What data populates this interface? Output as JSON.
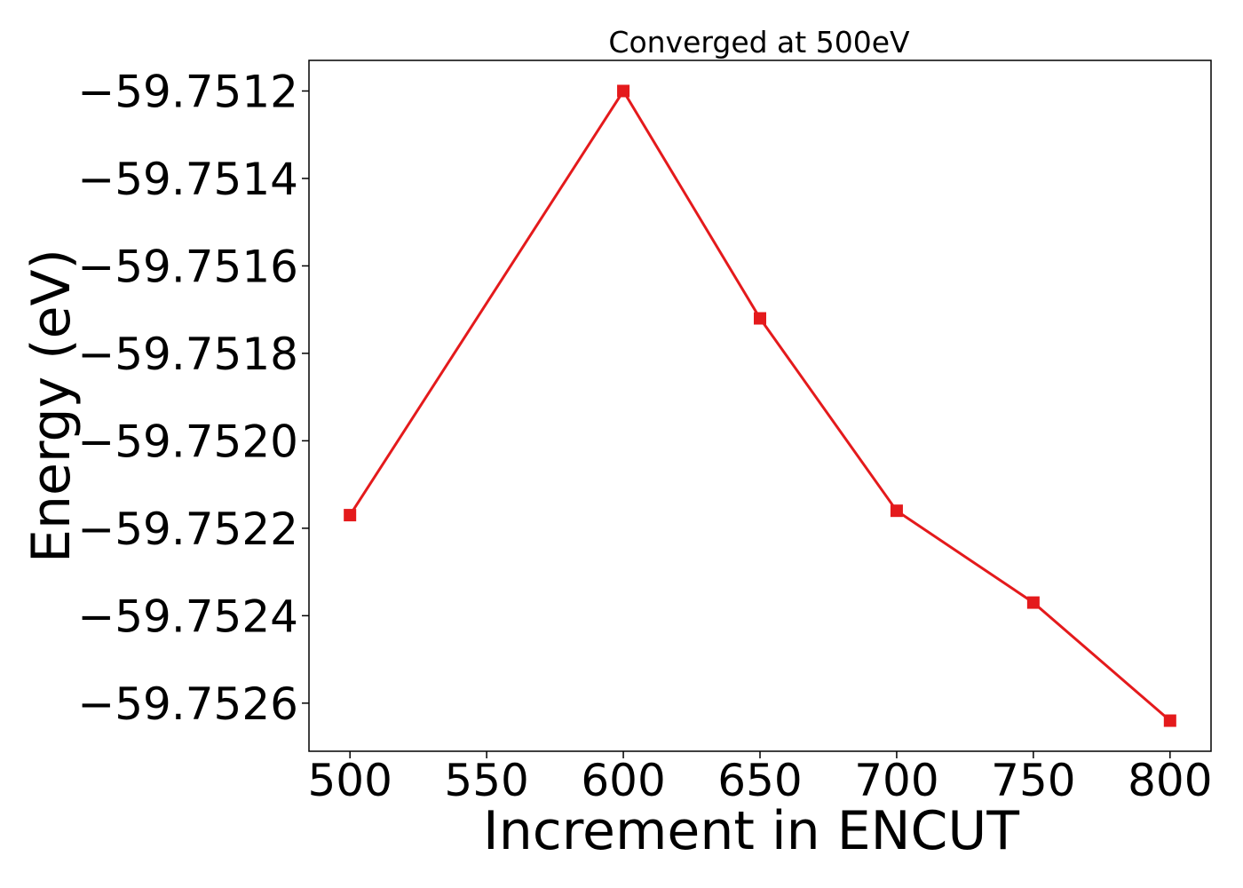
{
  "chart_data": {
    "type": "line",
    "title": "Converged at 500eV",
    "xlabel": "Increment in ENCUT",
    "ylabel": "Energy (eV)",
    "x": [
      500,
      600,
      650,
      700,
      750,
      800
    ],
    "series": [
      {
        "values": [
          -59.75217,
          -59.7512,
          -59.75172,
          -59.75216,
          -59.75237,
          -59.75264
        ],
        "color": "#e41a1c",
        "marker": "square"
      }
    ],
    "xticks": [
      500,
      550,
      600,
      650,
      700,
      750,
      800
    ],
    "xtick_labels": [
      "500",
      "550",
      "600",
      "650",
      "700",
      "750",
      "800"
    ],
    "yticks": [
      -59.7512,
      -59.7514,
      -59.7516,
      -59.7518,
      -59.752,
      -59.7522,
      -59.7524,
      -59.7526
    ],
    "ytick_labels": [
      "−59.7512",
      "−59.7514",
      "−59.7516",
      "−59.7518",
      "−59.7520",
      "−59.7522",
      "−59.7524",
      "−59.7526"
    ],
    "xlim": [
      485,
      815
    ],
    "ylim": [
      -59.75271,
      -59.75113
    ],
    "grid": false
  }
}
